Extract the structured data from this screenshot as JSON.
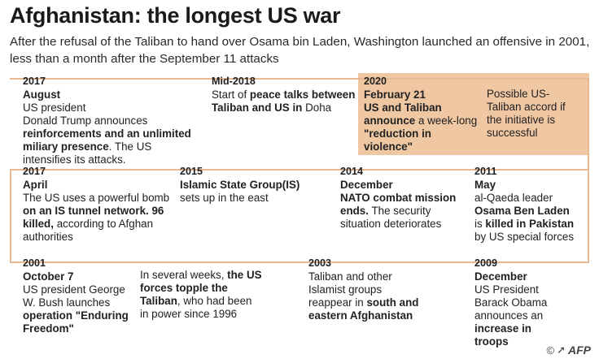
{
  "header": {
    "title": "Afghanistan: the longest US war",
    "subtitle": "After the refusal of the Taliban to hand over  Osama bin Laden, Washington launched an offensive in 2001, less than a month after the September 11 attacks"
  },
  "colors": {
    "timeline_line": "#e8b890",
    "highlight_box": "#efc7a3",
    "text": "#222222"
  },
  "entries": {
    "e2017aug": {
      "year": "2017",
      "heading": "August",
      "t1": "US president",
      "t2": "Donald Trump announces",
      "b1": "reinforcements and an unlimited miliary presence",
      "t3": ". The US intensifies its attacks."
    },
    "e2018": {
      "year": "Mid-2018",
      "t1": "Start of ",
      "b1": "peace talks between Taliban and US in",
      "t2": " Doha"
    },
    "e2020": {
      "year": "2020",
      "heading": "February 21",
      "b1": "US and Taliban announce",
      "t1": " a week-long ",
      "b2": "\"reduction in violence\""
    },
    "e2020note": {
      "text": "Possible US-Taliban accord if the initiative is successful"
    },
    "e2017apr": {
      "year": "2017",
      "heading": "April",
      "t1": "The US uses a powerful bomb ",
      "b1": "on an IS tunnel network. 96 killed,",
      "t2": " according to Afghan authorities"
    },
    "e2015": {
      "year": "2015",
      "b1": "Islamic State Group(IS)",
      "t1": "sets up in the east"
    },
    "e2014": {
      "year": "2014",
      "heading": "December",
      "b1": "NATO combat mission ends.",
      "t1": " The security situation deteriorates"
    },
    "e2011": {
      "year": "2011",
      "heading": "May",
      "t1": "al-Qaeda leader",
      "b1": "Osama Ben Laden",
      "t2": " is ",
      "b2": "killed in Pakistan",
      "t3": " by US special forces"
    },
    "e2001": {
      "year": "2001",
      "heading": "October 7",
      "t1": "US president George W. Bush launches ",
      "b1": "operation \"Enduring Freedom\""
    },
    "e2001note": {
      "t1": "In several weeks, ",
      "b1": "the US forces topple the Taliban",
      "t2": ", who had been in power since 1996"
    },
    "e2003": {
      "year": "2003",
      "t1": "Taliban and other Islamist groups reappear in ",
      "b1": "south and eastern Afghanistan"
    },
    "e2009": {
      "year": "2009",
      "heading": "December",
      "t1": "US President Barack Obama announces an ",
      "b1": "increase in troops"
    }
  },
  "credit": {
    "copyright": "©",
    "agency": "AFP"
  }
}
